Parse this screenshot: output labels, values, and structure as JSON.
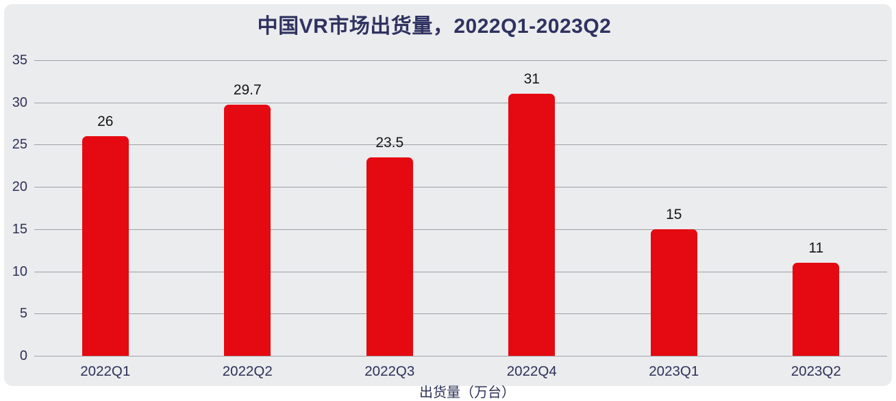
{
  "page": {
    "background": "#ffffff",
    "panel_background": "#ebecee"
  },
  "chart_data": {
    "type": "bar",
    "title": "中国VR市场出货量，2022Q1-2023Q2",
    "categories": [
      "2022Q1",
      "2022Q2",
      "2022Q3",
      "2022Q4",
      "2023Q1",
      "2023Q2"
    ],
    "values": [
      26,
      29.7,
      23.5,
      31,
      15,
      11
    ],
    "data_labels": [
      "26",
      "29.7",
      "23.5",
      "31",
      "15",
      "11"
    ],
    "xlabel": "出货量（万台）",
    "ylabel": "",
    "ylim": [
      0,
      35
    ],
    "yticks": [
      0,
      5,
      10,
      15,
      20,
      25,
      30,
      35
    ],
    "grid": true,
    "legend": "none",
    "bar_color": "#e50911",
    "title_color": "#2f3260",
    "axis_text_color": "#2d3156",
    "value_label_color": "#151515",
    "gridline_color": "#9fa0a8"
  }
}
